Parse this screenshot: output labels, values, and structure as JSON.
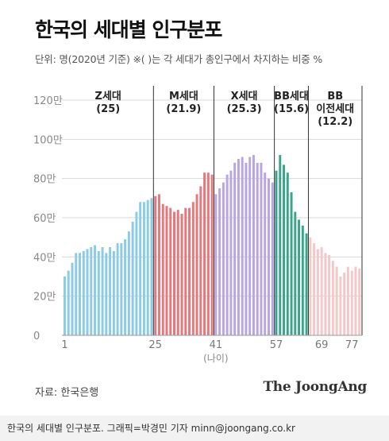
{
  "title": "한국의 세대별 인구분포",
  "subtitle": "단위: 명(2020년 기준)   ※(  )는 각 세대가 총인구에서 차지하는 비중 %",
  "source": "자료: 한국은행",
  "brand": "The JoongAng",
  "caption": "한국의 세대별 인구분포. 그래픽=박경민 기자 minn@joongang.co.kr",
  "chart_data": {
    "type": "bar",
    "xlabel": "(나이)",
    "ylabel": "",
    "ylim": [
      0,
      125
    ],
    "y_ticks": [
      {
        "value": 0,
        "label": "0"
      },
      {
        "value": 20,
        "label": "20만"
      },
      {
        "value": 40,
        "label": "40만"
      },
      {
        "value": 60,
        "label": "60만"
      },
      {
        "value": 80,
        "label": "80만"
      },
      {
        "value": 100,
        "label": "100만"
      },
      {
        "value": 120,
        "label": "120만"
      }
    ],
    "x_ticks": [
      "1",
      "25",
      "41",
      "57",
      "69",
      "77"
    ],
    "x_tick_values": [
      1,
      25,
      41,
      57,
      69,
      77
    ],
    "x_range": [
      1,
      79
    ],
    "generations": [
      {
        "name": "Z세대",
        "share": "(25)",
        "from": 1,
        "to": 24,
        "color": "#8ccbe6"
      },
      {
        "name": "M세대",
        "share": "(21.9)",
        "from": 25,
        "to": 40,
        "color": "#e6777a"
      },
      {
        "name": "X세대",
        "share": "(25.3)",
        "from": 41,
        "to": 56,
        "color": "#b6a6e3"
      },
      {
        "name": "BB세대",
        "share": "(15.6)",
        "from": 57,
        "to": 65,
        "color": "#3ba58c"
      },
      {
        "name": "BB 이전세대",
        "share": "(12.2)",
        "from": 66,
        "to": 79,
        "color": "#f5c8c8"
      }
    ],
    "ages": [
      1,
      2,
      3,
      4,
      5,
      6,
      7,
      8,
      9,
      10,
      11,
      12,
      13,
      14,
      15,
      16,
      17,
      18,
      19,
      20,
      21,
      22,
      23,
      24,
      25,
      26,
      27,
      28,
      29,
      30,
      31,
      32,
      33,
      34,
      35,
      36,
      37,
      38,
      39,
      40,
      41,
      42,
      43,
      44,
      45,
      46,
      47,
      48,
      49,
      50,
      51,
      52,
      53,
      54,
      55,
      56,
      57,
      58,
      59,
      60,
      61,
      62,
      63,
      64,
      65,
      66,
      67,
      68,
      69,
      70,
      71,
      72,
      73,
      74,
      75,
      76,
      77,
      78,
      79
    ],
    "values_10k": [
      30,
      33,
      37,
      42,
      42,
      43,
      44,
      45,
      46,
      43,
      45,
      42,
      45,
      43,
      47,
      47,
      49,
      53,
      58,
      63,
      68,
      68,
      69,
      70,
      71,
      72,
      67,
      66,
      65,
      63,
      64,
      62,
      65,
      65,
      68,
      72,
      76,
      83,
      83,
      82,
      72,
      75,
      78,
      82,
      84,
      88,
      90,
      91,
      88,
      91,
      92,
      88,
      88,
      83,
      80,
      78,
      84,
      92,
      87,
      83,
      73,
      63,
      59,
      56,
      52,
      50,
      47,
      44,
      45,
      42,
      41,
      38,
      35,
      30,
      32,
      35,
      33,
      35,
      34
    ]
  }
}
